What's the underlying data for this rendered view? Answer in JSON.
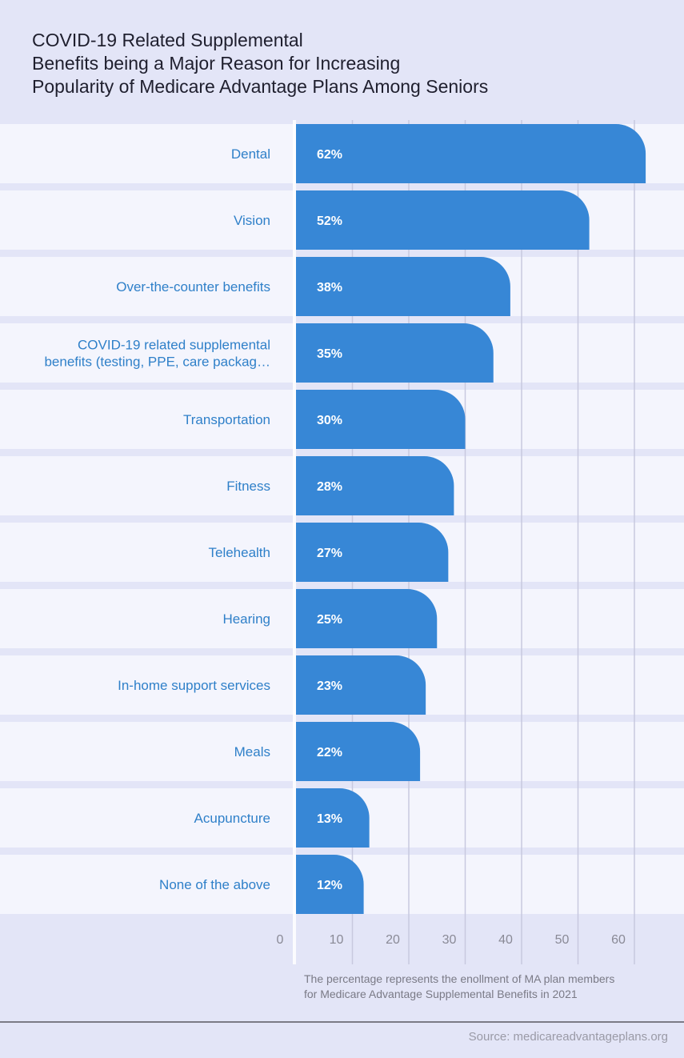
{
  "chart_data": {
    "type": "bar",
    "orientation": "horizontal",
    "title": "COVID-19 Related Supplemental\nBenefits being a Major Reason for Increasing\nPopularity of Medicare Advantage Plans Among Seniors",
    "categories": [
      "Dental",
      "Vision",
      "Over-the-counter benefits",
      "COVID-19 related supplemental\nbenefits (testing, PPE, care packag…",
      "Transportation",
      "Fitness",
      "Telehealth",
      "Hearing",
      "In-home support services",
      "Meals",
      "Acupuncture",
      "None of the above"
    ],
    "values": [
      62,
      52,
      38,
      35,
      30,
      28,
      27,
      25,
      23,
      22,
      13,
      12
    ],
    "value_labels": [
      "62%",
      "52%",
      "38%",
      "35%",
      "30%",
      "28%",
      "27%",
      "25%",
      "23%",
      "22%",
      "13%",
      "12%"
    ],
    "xticks": [
      0,
      10,
      20,
      30,
      40,
      50,
      60
    ],
    "xlim": [
      0,
      65
    ],
    "grid": true,
    "bar_color": "#3787d6",
    "label_color": "#2f80c9"
  },
  "footnote": "The percentage represents the enollment of MA plan members\nfor Medicare Advantage Supplemental Benefits in 2021",
  "source": "Source: medicareadvantageplans.org",
  "colors": {
    "background": "#e3e5f7",
    "row_background": "#f4f5fd",
    "grid": "#c8c9df",
    "axis_label": "#8a8a96"
  }
}
